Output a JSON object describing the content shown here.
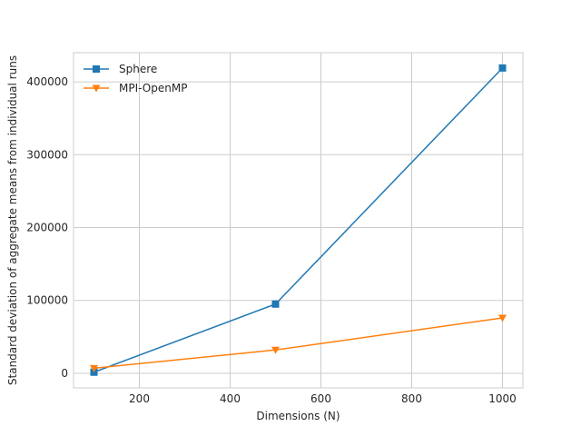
{
  "chart_data": {
    "type": "line",
    "title": "",
    "xlabel": "Dimensions (N)",
    "ylabel": "Standard deviation of aggregate means from individual runs",
    "xlim": [
      55,
      1045
    ],
    "ylim": [
      -20000,
      440000
    ],
    "xticks": [
      200,
      400,
      600,
      800,
      1000
    ],
    "yticks": [
      0,
      100000,
      200000,
      300000,
      400000
    ],
    "xtick_labels": [
      "200",
      "400",
      "600",
      "800",
      "1000"
    ],
    "ytick_labels": [
      "0",
      "100000",
      "200000",
      "300000",
      "400000"
    ],
    "grid": true,
    "legend_position": "top-left",
    "series": [
      {
        "name": "Sphere",
        "color": "#1f77b4",
        "marker": "square",
        "x": [
          100,
          500,
          1000
        ],
        "y": [
          1500,
          95000,
          419000
        ]
      },
      {
        "name": "MPI-OpenMP",
        "color": "#ff7f0e",
        "marker": "triangle-down",
        "x": [
          100,
          500,
          1000
        ],
        "y": [
          7000,
          32000,
          76000
        ]
      }
    ]
  }
}
